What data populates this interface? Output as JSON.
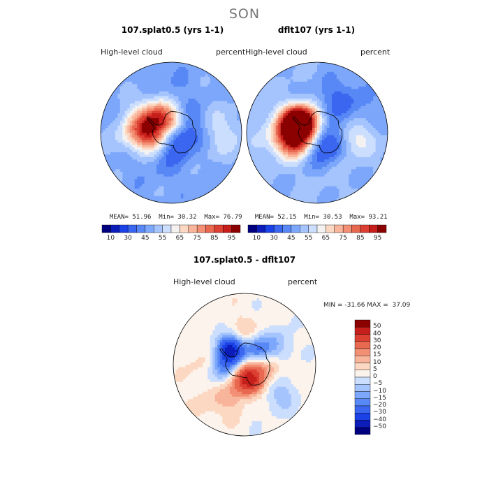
{
  "page": {
    "title": "SON"
  },
  "panels": [
    {
      "title": "107.splat0.5 (yrs 1-1)",
      "variable": "High-level cloud",
      "units": "percent",
      "stats": {
        "mean_label": "MEAN=",
        "mean": "51.96",
        "min_label": "Min=",
        "min": "30.32",
        "max_label": "Max=",
        "max": "76.79"
      },
      "field": [
        {
          "lon": 300,
          "lat": 70,
          "r": 0.22,
          "v": 72
        },
        {
          "lon": 270,
          "lat": 66,
          "r": 0.18,
          "v": 68
        },
        {
          "lon": 330,
          "lat": 72,
          "r": 0.16,
          "v": 66
        },
        {
          "lon": 20,
          "lat": 80,
          "r": 0.14,
          "v": 66
        },
        {
          "lon": 240,
          "lat": 78,
          "r": 0.18,
          "v": 62
        },
        {
          "lon": 60,
          "lat": 78,
          "r": 0.2,
          "v": 34
        },
        {
          "lon": 150,
          "lat": 84,
          "r": 0.16,
          "v": 34
        },
        {
          "lon": 100,
          "lat": 66,
          "r": 0.16,
          "v": 45
        },
        {
          "lon": 180,
          "lat": 72,
          "r": 0.18,
          "v": 40
        },
        {
          "lon": 210,
          "lat": 60,
          "r": 0.22,
          "v": 45
        },
        {
          "lon": 130,
          "lat": 52,
          "r": 0.22,
          "v": 48
        },
        {
          "lon": 0,
          "lat": 52,
          "r": 0.25,
          "v": 45
        },
        {
          "lon": 270,
          "lat": 52,
          "r": 0.2,
          "v": 55
        },
        {
          "lon": 90,
          "lat": 45,
          "r": 0.25,
          "v": 58
        }
      ]
    },
    {
      "title": "dflt107 (yrs 1-1)",
      "variable": "High-level cloud",
      "units": "percent",
      "stats": {
        "mean_label": "MEAN=",
        "mean": "52.15",
        "min_label": "Min=",
        "min": "30.53",
        "max_label": "Max=",
        "max": "93.21"
      },
      "field": [
        {
          "lon": 280,
          "lat": 72,
          "r": 0.2,
          "v": 90
        },
        {
          "lon": 300,
          "lat": 68,
          "r": 0.14,
          "v": 92
        },
        {
          "lon": 250,
          "lat": 66,
          "r": 0.18,
          "v": 78
        },
        {
          "lon": 330,
          "lat": 78,
          "r": 0.16,
          "v": 70
        },
        {
          "lon": 0,
          "lat": 72,
          "r": 0.14,
          "v": 48
        },
        {
          "lon": 60,
          "lat": 84,
          "r": 0.16,
          "v": 40
        },
        {
          "lon": 120,
          "lat": 70,
          "r": 0.16,
          "v": 40
        },
        {
          "lon": 100,
          "lat": 56,
          "r": 0.18,
          "v": 66
        },
        {
          "lon": 160,
          "lat": 76,
          "r": 0.18,
          "v": 38
        },
        {
          "lon": 200,
          "lat": 65,
          "r": 0.18,
          "v": 45
        },
        {
          "lon": 30,
          "lat": 55,
          "r": 0.22,
          "v": 40
        },
        {
          "lon": 180,
          "lat": 50,
          "r": 0.25,
          "v": 52
        },
        {
          "lon": 270,
          "lat": 48,
          "r": 0.22,
          "v": 55
        },
        {
          "lon": 60,
          "lat": 45,
          "r": 0.25,
          "v": 45
        }
      ]
    }
  ],
  "colorbar_top": {
    "levels": [
      5,
      10,
      20,
      30,
      40,
      45,
      50,
      55,
      60,
      65,
      70,
      75,
      80,
      85,
      90,
      95,
      100
    ],
    "tick_labels": [
      "10",
      "30",
      "45",
      "55",
      "65",
      "75",
      "85",
      "95"
    ],
    "colors": [
      "#00007f",
      "#0c1dba",
      "#1b42e6",
      "#3a66f0",
      "#5888f5",
      "#7da7fa",
      "#a5c4fd",
      "#ccdefe",
      "#f4f2f0",
      "#fcd8c2",
      "#f8b59b",
      "#f28f74",
      "#e86850",
      "#db4032",
      "#c61f1b",
      "#8b0000"
    ]
  },
  "difference": {
    "title": "107.splat0.5 - dflt107",
    "variable": "High-level cloud",
    "units": "percent",
    "minmax": "MIN = -31.66 MAX =  37.09",
    "levels": [
      -60,
      -50,
      -40,
      -30,
      -20,
      -15,
      -10,
      -5,
      0,
      5,
      10,
      15,
      20,
      30,
      40,
      50,
      60
    ],
    "tick_labels": [
      "50",
      "40",
      "30",
      "20",
      "15",
      "10",
      "5",
      "0",
      "−5",
      "−10",
      "−15",
      "−20",
      "−30",
      "−40",
      "−50"
    ],
    "colors": [
      "#00007f",
      "#0c1dba",
      "#1b42e6",
      "#3a66f0",
      "#5888f5",
      "#7da7fa",
      "#a5c4fd",
      "#ccdefe",
      "#fbf3ec",
      "#fcd8c2",
      "#f8b59b",
      "#f28f74",
      "#e86850",
      "#db4032",
      "#c61f1b",
      "#8b0000"
    ],
    "field": [
      {
        "lon": 180,
        "lat": 80,
        "r": 0.16,
        "v": 32
      },
      {
        "lon": 160,
        "lat": 72,
        "r": 0.12,
        "v": 26
      },
      {
        "lon": 300,
        "lat": 76,
        "r": 0.16,
        "v": -22
      },
      {
        "lon": 320,
        "lat": 70,
        "r": 0.12,
        "v": -28
      },
      {
        "lon": 40,
        "lat": 72,
        "r": 0.12,
        "v": -18
      },
      {
        "lon": 250,
        "lat": 70,
        "r": 0.14,
        "v": -12
      },
      {
        "lon": 100,
        "lat": 66,
        "r": 0.14,
        "v": 14
      },
      {
        "lon": 200,
        "lat": 58,
        "r": 0.14,
        "v": 10
      },
      {
        "lon": 60,
        "lat": 56,
        "r": 0.16,
        "v": -10
      },
      {
        "lon": 0,
        "lat": 58,
        "r": 0.16,
        "v": 8
      },
      {
        "lon": 130,
        "lat": 50,
        "r": 0.18,
        "v": -8
      },
      {
        "lon": 270,
        "lat": 50,
        "r": 0.18,
        "v": 6
      },
      {
        "lon": 220,
        "lat": 45,
        "r": 0.2,
        "v": 8
      }
    ]
  }
}
